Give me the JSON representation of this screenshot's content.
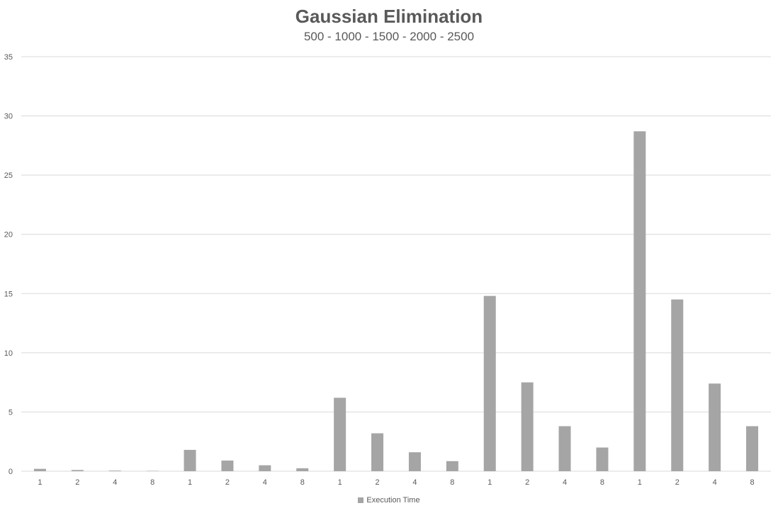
{
  "chart_data": {
    "type": "bar",
    "title": "Gaussian Elimination",
    "subtitle": "500 - 1000 - 1500 - 2000 - 2500",
    "xlabel": "",
    "ylabel": "",
    "categories": [
      "1",
      "2",
      "4",
      "8",
      "1",
      "2",
      "4",
      "8",
      "1",
      "2",
      "4",
      "8",
      "1",
      "2",
      "4",
      "8",
      "1",
      "2",
      "4",
      "8"
    ],
    "series": [
      {
        "name": "Execution Time",
        "color": "#a5a5a5",
        "values": [
          0.2,
          0.1,
          0.05,
          0.03,
          1.8,
          0.9,
          0.5,
          0.25,
          6.2,
          3.2,
          1.6,
          0.85,
          14.8,
          7.5,
          3.8,
          2.0,
          28.7,
          14.5,
          7.4,
          3.8
        ]
      }
    ],
    "ylim": [
      0,
      35
    ],
    "yticks": [
      "0",
      "5",
      "10",
      "15",
      "20",
      "25",
      "30",
      "35"
    ],
    "grid": true,
    "legend_position": "bottom"
  },
  "colors": {
    "bar": "#a5a5a5",
    "gridline": "#d9d9d9",
    "text": "#595959"
  }
}
